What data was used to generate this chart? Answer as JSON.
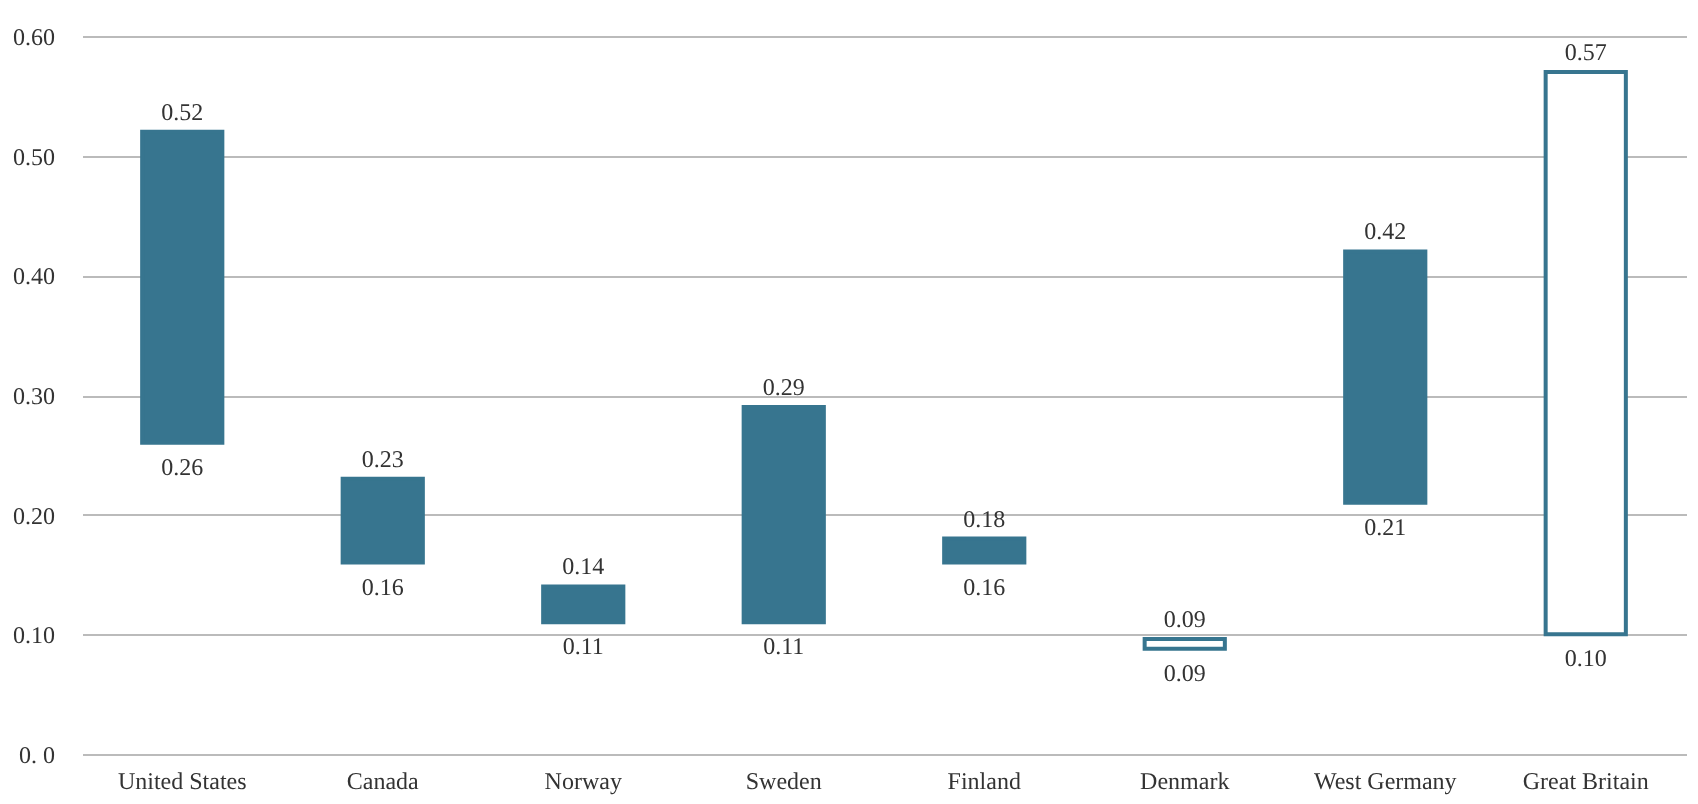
{
  "chart_data": {
    "type": "bar",
    "categories": [
      "United States",
      "Canada",
      "Norway",
      "Sweden",
      "Finland",
      "Denmark",
      "West Germany",
      "Great Britain"
    ],
    "base": [
      0.26,
      0.16,
      0.11,
      0.11,
      0.16,
      0.088,
      0.21,
      0.1
    ],
    "values": [
      0.26,
      0.07,
      0.03,
      0.18,
      0.02,
      0.008,
      0.21,
      0.47
    ],
    "color": "#37758f",
    "colors": [
      "#37758f",
      "#37758f",
      "#37758f",
      "#37758f",
      "#37758f",
      "#ffffff",
      "#37758f",
      "#ffffff"
    ],
    "ylim": [
      0,
      0.6
    ],
    "yticks": [
      {
        "value": 0,
        "label": "0. 0"
      },
      {
        "value": 0.1,
        "label": "0.10"
      },
      {
        "value": 0.2,
        "label": "0.20"
      },
      {
        "value": 0.3,
        "label": "0.30"
      },
      {
        "value": 0.4,
        "label": "0.40"
      },
      {
        "value": 0.5,
        "label": "0.50"
      },
      {
        "value": 0.6,
        "label": "0.60"
      }
    ],
    "grid": "y",
    "annotations": [
      {
        "text": "0.52",
        "x": "United States",
        "y": 0.52
      },
      {
        "text": "0.26",
        "x": "United States",
        "y": 0.26
      },
      {
        "text": "0.23",
        "x": "Canada",
        "y": 0.23
      },
      {
        "text": "0.16",
        "x": "Canada",
        "y": 0.16
      },
      {
        "text": "0.14",
        "x": "Norway",
        "y": 0.14
      },
      {
        "text": "0.11",
        "x": "Norway",
        "y": 0.11
      },
      {
        "text": "0.29",
        "x": "Sweden",
        "y": 0.29
      },
      {
        "text": "0.11",
        "x": "Sweden",
        "y": 0.11
      },
      {
        "text": "0.18",
        "x": "Finland",
        "y": 0.18
      },
      {
        "text": "0.16",
        "x": "Finland",
        "y": 0.16
      },
      {
        "text": "0.09",
        "x": "Denmark",
        "y": 0.096
      },
      {
        "text": "0.09",
        "x": "Denmark",
        "y": 0.088
      },
      {
        "text": "0.42",
        "x": "West Germany",
        "y": 0.42
      },
      {
        "text": "0.21",
        "x": "West Germany",
        "y": 0.21
      },
      {
        "text": "0.57",
        "x": "Great Britain",
        "y": 0.57
      },
      {
        "text": "0.10",
        "x": "Great Britain",
        "y": 0.1
      }
    ]
  }
}
